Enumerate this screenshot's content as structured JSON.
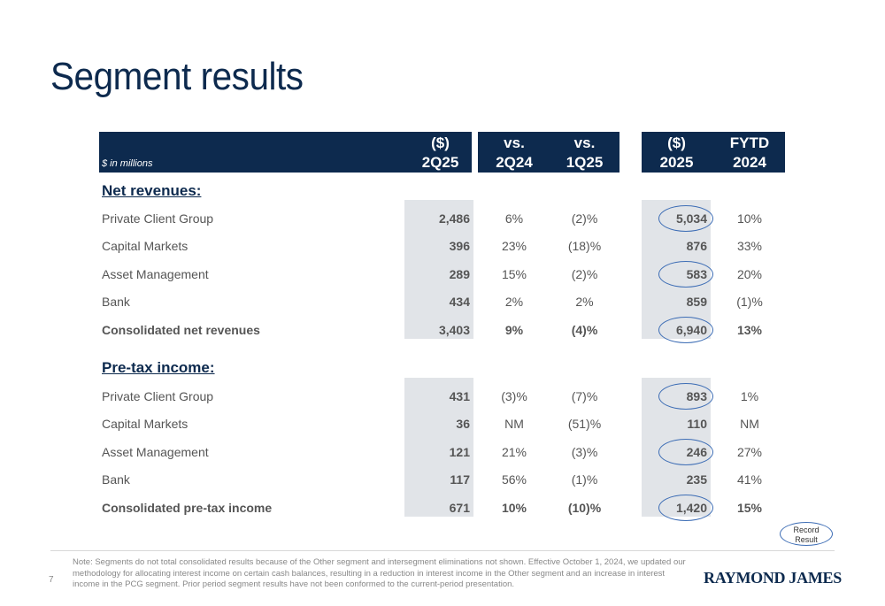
{
  "title": "Segment results",
  "header": {
    "units": "$ in millions",
    "columns": [
      {
        "line1": "($)",
        "line2": "2Q25"
      },
      {
        "line1": "vs.",
        "line2": "2Q24"
      },
      {
        "line1": "vs.",
        "line2": "1Q25"
      },
      {
        "line1": "($)",
        "line2": "2025"
      },
      {
        "line1": "FYTD",
        "line2": "2024"
      }
    ]
  },
  "sections": [
    {
      "heading": "Net revenues:",
      "rows": [
        {
          "label": "Private Client Group",
          "v1": "2,486",
          "v2": "6%",
          "v3": "(2)%",
          "v4": "5,034",
          "v5": "10%"
        },
        {
          "label": "Capital Markets",
          "v1": "396",
          "v2": "23%",
          "v3": "(18)%",
          "v4": "876",
          "v5": "33%"
        },
        {
          "label": "Asset Management",
          "v1": "289",
          "v2": "15%",
          "v3": "(2)%",
          "v4": "583",
          "v5": "20%"
        },
        {
          "label": "Bank",
          "v1": "434",
          "v2": "2%",
          "v3": "2%",
          "v4": "859",
          "v5": "(1)%"
        },
        {
          "label": "Consolidated net revenues",
          "v1": "3,403",
          "v2": "9%",
          "v3": "(4)%",
          "v4": "6,940",
          "v5": "13%"
        }
      ]
    },
    {
      "heading": "Pre-tax income:",
      "rows": [
        {
          "label": "Private Client Group",
          "v1": "431",
          "v2": "(3)%",
          "v3": "(7)%",
          "v4": "893",
          "v5": "1%"
        },
        {
          "label": "Capital Markets",
          "v1": "36",
          "v2": "NM",
          "v3": "(51)%",
          "v4": "110",
          "v5": "NM"
        },
        {
          "label": "Asset Management",
          "v1": "121",
          "v2": "21%",
          "v3": "(3)%",
          "v4": "246",
          "v5": "27%"
        },
        {
          "label": "Bank",
          "v1": "117",
          "v2": "56%",
          "v3": "(1)%",
          "v4": "235",
          "v5": "41%"
        },
        {
          "label": "Consolidated pre-tax income",
          "v1": "671",
          "v2": "10%",
          "v3": "(10)%",
          "v4": "1,420",
          "v5": "15%"
        }
      ]
    }
  ],
  "badge": {
    "line1": "Record",
    "line2": "Result"
  },
  "footer": {
    "page_number": "7",
    "note": "Note: Segments do not total consolidated results because of the Other segment and intersegment eliminations not shown.  Effective October 1, 2024, we updated our methodology for allocating interest income on certain cash balances, resulting in a reduction in interest income in the Other segment and an increase in interest income in the PCG segment.  Prior period segment results have not been conformed to the current-period presentation.",
    "logo": "RAYMOND JAMES"
  },
  "colors": {
    "navy": "#0d2a4e",
    "shade": "#e1e4e8",
    "circle": "#3d6db5"
  }
}
